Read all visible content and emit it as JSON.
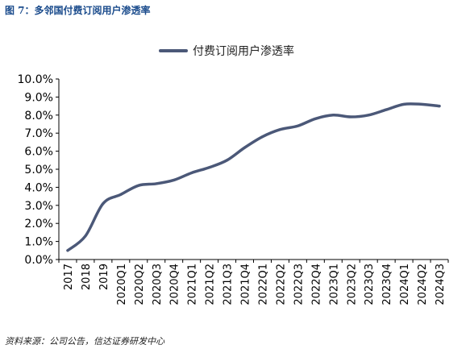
{
  "figure": {
    "title": "图 7：多邻国付费订阅用户渗透率",
    "source": "资料来源：公司公告，信达证券研发中心"
  },
  "chart_data": {
    "type": "line",
    "title": "",
    "xlabel": "",
    "ylabel": "",
    "ylim": [
      0,
      10
    ],
    "y_tick_labels": [
      "0.0%",
      "1.0%",
      "2.0%",
      "3.0%",
      "4.0%",
      "5.0%",
      "6.0%",
      "7.0%",
      "8.0%",
      "9.0%",
      "10.0%"
    ],
    "categories": [
      "2017",
      "2018",
      "2019",
      "2020Q1",
      "2020Q2",
      "2020Q3",
      "2020Q4",
      "2021Q1",
      "2021Q2",
      "2021Q3",
      "2021Q4",
      "2022Q1",
      "2022Q2",
      "2022Q3",
      "2022Q4",
      "2023Q1",
      "2023Q2",
      "2023Q3",
      "2023Q4",
      "2024Q1",
      "2024Q2",
      "2024Q3"
    ],
    "series": [
      {
        "name": "付费订阅用户渗透率",
        "color": "#4b5878",
        "values": [
          0.5,
          1.3,
          3.1,
          3.6,
          4.1,
          4.2,
          4.4,
          4.8,
          5.1,
          5.5,
          6.2,
          6.8,
          7.2,
          7.4,
          7.8,
          8.0,
          7.9,
          8.0,
          8.3,
          8.6,
          8.6,
          8.5
        ]
      }
    ],
    "grid": false,
    "legend_position": "top-center"
  }
}
